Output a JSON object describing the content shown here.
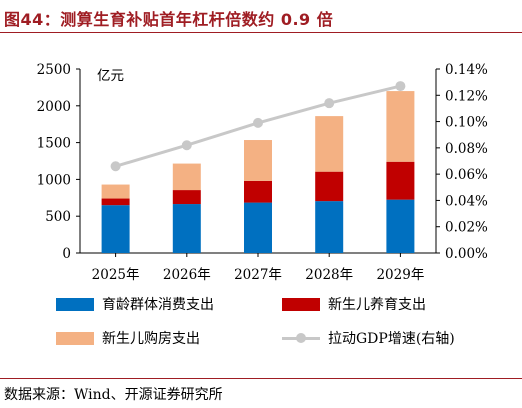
{
  "header": {
    "title": "图44：测算生育补贴首年杠杆倍数约 0.9 倍"
  },
  "source": "数据来源：Wind、开源证券研究所",
  "colors": {
    "title": "#9f1d23",
    "blue": "#0070c0",
    "red": "#c00000",
    "peach": "#f4b183",
    "line": "#c8c8c8"
  },
  "chart_data": {
    "type": "bar",
    "stacked": true,
    "categories": [
      "2025年",
      "2026年",
      "2027年",
      "2028年",
      "2029年"
    ],
    "unit_label": "亿元",
    "y_left": {
      "lim": [
        0,
        2500
      ],
      "ticks": [
        "0",
        "500",
        "1000",
        "1500",
        "2000",
        "2500"
      ]
    },
    "y_right": {
      "lim": [
        0,
        0.14
      ],
      "ticks": [
        "0.00%",
        "0.02%",
        "0.04%",
        "0.06%",
        "0.08%",
        "0.10%",
        "0.12%",
        "0.14%"
      ]
    },
    "series": [
      {
        "name": "育龄群体消费支出",
        "kind": "bar",
        "color": "#0070c0",
        "values": [
          650,
          665,
          685,
          705,
          725
        ]
      },
      {
        "name": "新生儿养育支出",
        "kind": "bar",
        "color": "#c00000",
        "values": [
          90,
          190,
          295,
          400,
          515
        ]
      },
      {
        "name": "新生儿购房支出",
        "kind": "bar",
        "color": "#f4b183",
        "values": [
          190,
          360,
          555,
          755,
          960
        ]
      },
      {
        "name": "拉动GDP增速(右轴)",
        "kind": "line",
        "axis": "right",
        "color": "#c8c8c8",
        "values": [
          0.066,
          0.082,
          0.099,
          0.114,
          0.127
        ]
      }
    ],
    "legend_position": "bottom",
    "grid": false
  }
}
